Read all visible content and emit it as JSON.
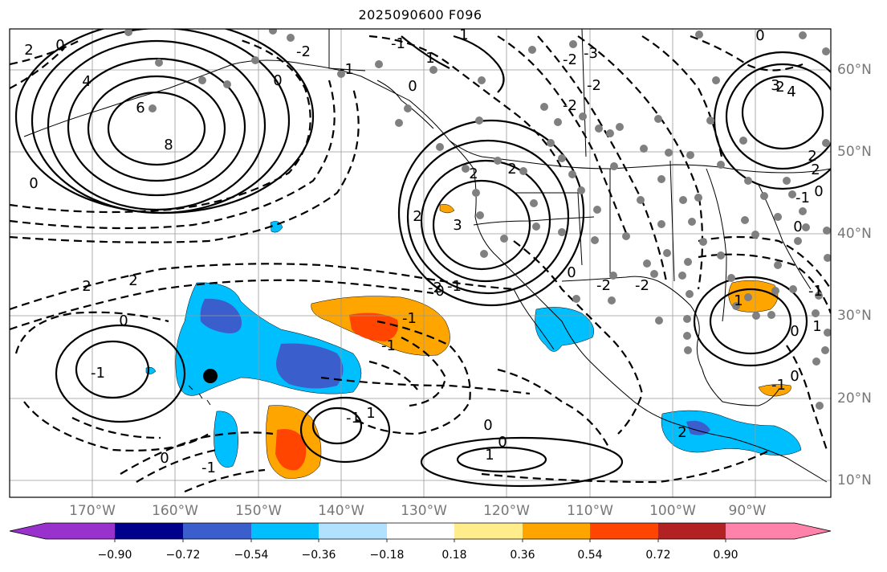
{
  "title": "2025090600 F096",
  "map": {
    "lat_labels": [
      "60°N",
      "50°N",
      "40°N",
      "30°N",
      "20°N",
      "10°N"
    ],
    "lon_labels": [
      "170°W",
      "160°W",
      "150°W",
      "140°W",
      "130°W",
      "120°W",
      "110°W",
      "100°W",
      "90°W"
    ],
    "contour_labels": [
      "2",
      "0",
      "0",
      "8",
      "6",
      "4",
      "0",
      "-2",
      "2",
      "2",
      "0",
      "3",
      "2",
      "2",
      "-1",
      "-1",
      "0",
      "-1",
      "-2",
      "-2",
      "-2",
      "-1",
      "0",
      "1",
      "-1",
      "-1",
      "-1",
      "1",
      "-1",
      "-1",
      "2",
      "0",
      "-2",
      "0",
      "1",
      "-1",
      "0",
      "-2",
      "1",
      "-2",
      "-3",
      "2",
      "0",
      "0",
      "0",
      "2",
      "3",
      "4",
      "2",
      "2",
      "0",
      "0",
      "1",
      "-1",
      "0",
      "1"
    ],
    "colors": {
      "shade_positive_light": "#ffa500",
      "shade_positive_strong": "#ff4500",
      "shade_negative_light": "#00bfff",
      "shade_negative_strong": "#3a5fcd",
      "station_dot": "#808080",
      "marker": "#000000"
    },
    "marker": "storm-center-marker"
  },
  "colorbar": {
    "ticks": [
      "−0.90",
      "−0.72",
      "−0.54",
      "−0.36",
      "−0.18",
      "0.18",
      "0.36",
      "0.54",
      "0.72",
      "0.90"
    ],
    "colors": [
      "#9932cc",
      "#00008b",
      "#3a5fcd",
      "#00bfff",
      "#b0e2ff",
      "#ffffff",
      "#ffec8b",
      "#ffa500",
      "#ff4500",
      "#b22222",
      "#ff82ab"
    ]
  }
}
